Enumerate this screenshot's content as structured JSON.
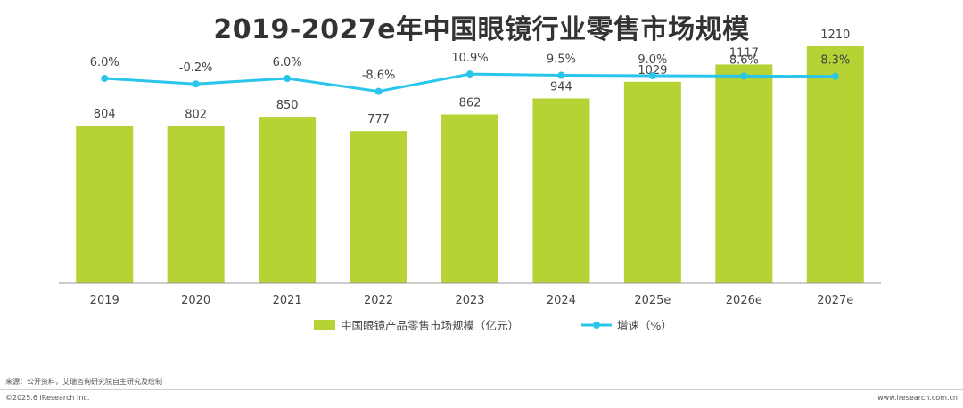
{
  "title": "2019-2027e年中国眼镜行业零售市场规模",
  "chart_data": {
    "type": "bar",
    "categories": [
      "2019",
      "2020",
      "2021",
      "2022",
      "2023",
      "2024",
      "2025e",
      "2026e",
      "2027e"
    ],
    "series": [
      {
        "name": "中国眼镜产品零售市场规模（亿元）",
        "type": "bar",
        "values": [
          804,
          802,
          850,
          777,
          862,
          944,
          1029,
          1117,
          1210
        ],
        "labels": [
          "804",
          "802",
          "850",
          "777",
          "862",
          "944",
          "1029",
          "1117",
          "1210"
        ],
        "color": "#b5d334"
      },
      {
        "name": "增速（%）",
        "type": "line",
        "values": [
          6.0,
          -0.2,
          6.0,
          -8.6,
          10.9,
          9.5,
          9.0,
          8.6,
          8.3
        ],
        "labels": [
          "6.0%",
          "-0.2%",
          "6.0%",
          "-8.6%",
          "10.9%",
          "9.5%",
          "9.0%",
          "8.6%",
          "8.3%"
        ],
        "color": "#29c5ea"
      }
    ],
    "ylim": [
      0,
      1310
    ],
    "y2lim": [
      -30,
      50
    ],
    "grid": false,
    "legend": "bottom"
  },
  "footer": {
    "source": "来源：公开资料，艾瑞咨询研究院自主研究及绘制",
    "copyright": "©2025.6 iResearch Inc.",
    "url": "www.iresearch.com.cn"
  }
}
